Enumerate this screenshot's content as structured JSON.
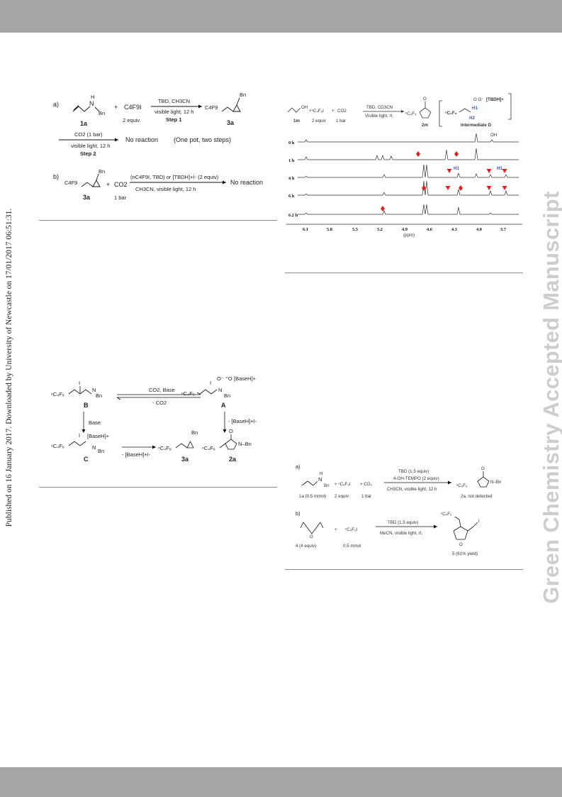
{
  "sidenote": "Published on 16 January 2017. Downloaded by University of Newcastle on 17/01/2017 06:51:31.",
  "watermark": "Green Chemistry Accepted Manuscript",
  "panel_a": {
    "label_a": "a)",
    "label_b": "b)",
    "nh": "N",
    "h": "H",
    "bn": "Bn",
    "plus": "+",
    "c4f9i": "C4F9I",
    "two_equiv": "2 equiv",
    "cond_top": "TBD, CH3CN",
    "cond_bottom": "visible light, 12 h",
    "step1": "Step 1",
    "c4f9": "C4F9",
    "cmp_1a": "1a",
    "cmp_3a": "3a",
    "co2_1bar": "CO2 (1 bar)",
    "step2_cond": "visible light, 12 h",
    "step2": "Step 2",
    "no_reaction": "No reaction",
    "one_pot": "(One pot, two steps)",
    "co2": "CO2",
    "one_bar": "1 bar",
    "b_cond_top": "(nC4F9I, TBD) or [TBDH]+I- (2 equiv)",
    "b_cond_bottom": "CH3CN, visible light, 12 h",
    "no_reaction_b": "No reaction"
  },
  "nmr": {
    "reagent": "1m",
    "co2_label": "CO2",
    "equiv": "2 equiv",
    "bar": "1 bar",
    "cond_top": "TBD, CD3CN",
    "cond_bottom": "Visible light, rt.",
    "product": "2m",
    "intermediate": "Intermediate D",
    "tbdh": "[TBDH]+",
    "h1": "H1",
    "h2": "H2",
    "oh": "OH",
    "times": [
      "0 h",
      "1 h",
      "4 h",
      "6 h",
      "6.2 h"
    ],
    "xticks": [
      "6.1",
      "5.8",
      "5.5",
      "5.2",
      "4.9",
      "4.6",
      "4.3",
      "4.0",
      "3.7"
    ],
    "xlabel": "(ppm)"
  },
  "mechanism": {
    "base_h": "[BaseH]+",
    "co2_base": "CO2, Base",
    "minus_co2": "- CO2",
    "base": "Base",
    "minus_baseh_i": "- [BaseH]+I-",
    "nc4f9": "C4F9",
    "bn": "Bn",
    "label_A": "A",
    "label_B": "B",
    "label_C": "C",
    "label_3a": "3a",
    "label_2a": "2a",
    "n_bn": "N–Bn",
    "i": "I"
  },
  "panel_d": {
    "label_a": "a)",
    "label_b": "b)",
    "tbd": "TBD (1.5 equiv)",
    "tempo": "4-OH-TEMPO (2 equiv)",
    "cond_a": "CH3CN, visible light, 12 h",
    "cmp_1a": "1a (0.5 mmol)",
    "equiv": "2 equiv",
    "bar": "1 bar",
    "product_a": "2a, not detected",
    "n_bn": "N–Bn",
    "tbd_b": "TBD (1.5 equiv)",
    "cond_b": "MeCN, visible light, rt.",
    "cmp_4": "4 (4 equiv)",
    "mmol": "0.5 mmol",
    "product_b": "5 (61% yield)",
    "i": "I",
    "o": "O"
  },
  "colors": {
    "band": "#a6a6a6",
    "watermark": "#cdcdcd",
    "marker_red": "#e0201c",
    "blue_label": "#3b4fd6"
  }
}
